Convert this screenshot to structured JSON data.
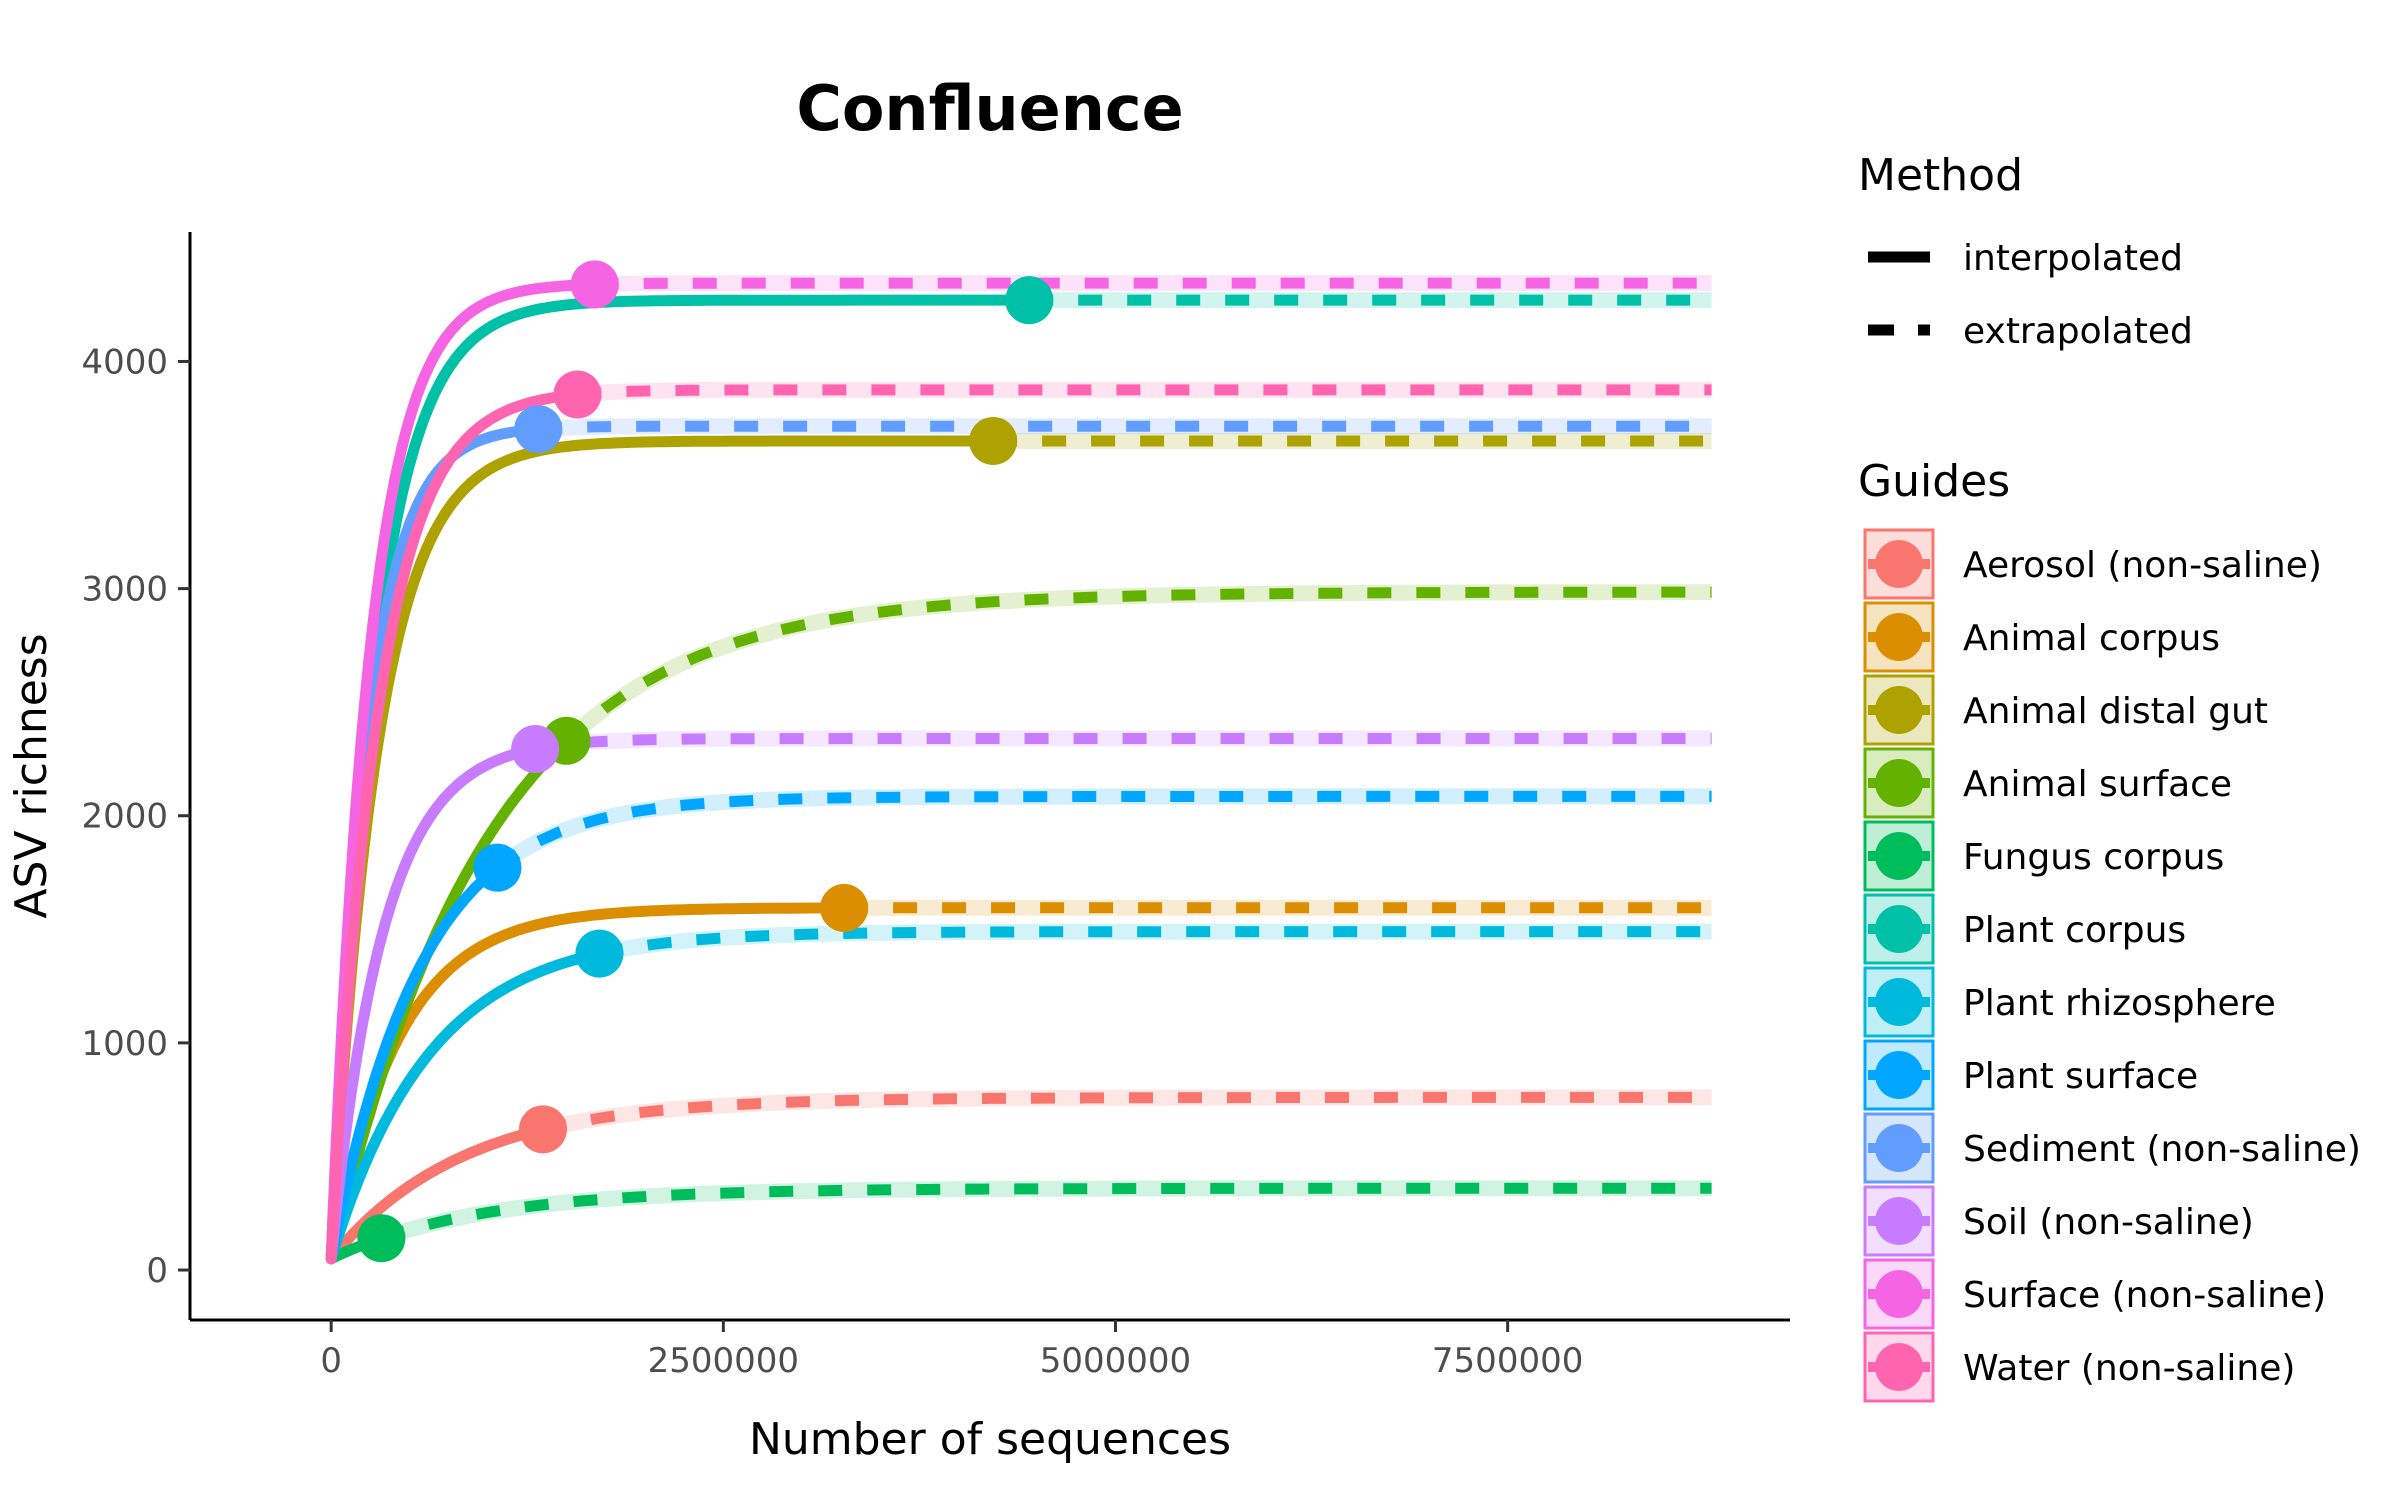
{
  "chart_data": {
    "type": "line",
    "title": "Confluence",
    "xlabel": "Number of sequences",
    "ylabel": "ASV richness",
    "xlim": [
      -900000,
      9300000
    ],
    "ylim": [
      -220,
      4570
    ],
    "x_ticks": [
      0,
      2500000,
      5000000,
      7500000
    ],
    "x_tick_labels": [
      "0",
      "2500000",
      "5000000",
      "7500000"
    ],
    "y_ticks": [
      0,
      1000,
      2000,
      3000,
      4000
    ],
    "y_tick_labels": [
      "0",
      "1000",
      "2000",
      "3000",
      "4000"
    ],
    "x_max": 8800000,
    "grid": false,
    "legend_placement": "right",
    "method_legend": {
      "title": "Method",
      "entries": [
        {
          "label": "interpolated",
          "style": "solid"
        },
        {
          "label": "extrapolated",
          "style": "dashed"
        }
      ]
    },
    "guides_legend_title": "Guides",
    "series": [
      {
        "name": "Aerosol (non-saline)",
        "color": "#F8766D",
        "observed_x": 1350000,
        "asymptote": 760,
        "rate": 2500000,
        "start_y": 50
      },
      {
        "name": "Animal corpus",
        "color": "#DB8E00",
        "observed_x": 3270000,
        "asymptote": 1595,
        "rate": 1300000,
        "start_y": 50
      },
      {
        "name": "Animal distal gut",
        "color": "#AEA200",
        "observed_x": 4220000,
        "asymptote": 3650,
        "rate": 900000,
        "start_y": 50
      },
      {
        "name": "Animal surface",
        "color": "#64B200",
        "observed_x": 1500000,
        "asymptote": 2985,
        "rate": 3000000,
        "start_y": 50
      },
      {
        "name": "Fungus corpus",
        "color": "#00BD5C",
        "observed_x": 320000,
        "asymptote": 360,
        "rate": 2800000,
        "start_y": 50
      },
      {
        "name": "Plant corpus",
        "color": "#00C1A7",
        "observed_x": 4450000,
        "asymptote": 4270,
        "rate": 850000,
        "start_y": 50
      },
      {
        "name": "Plant rhizosphere",
        "color": "#00BADE",
        "observed_x": 1710000,
        "asymptote": 1490,
        "rate": 1900000,
        "start_y": 50
      },
      {
        "name": "Plant surface",
        "color": "#00A6FF",
        "observed_x": 1060000,
        "asymptote": 2085,
        "rate": 1700000,
        "start_y": 50
      },
      {
        "name": "Sediment (non-saline)",
        "color": "#619CFF",
        "observed_x": 1320000,
        "asymptote": 3715,
        "rate": 700000,
        "start_y": 50
      },
      {
        "name": "Soil (non-saline)",
        "color": "#C77CFF",
        "observed_x": 1300000,
        "asymptote": 2340,
        "rate": 1000000,
        "start_y": 50
      },
      {
        "name": "Surface (non-saline)",
        "color": "#F564E3",
        "observed_x": 1680000,
        "asymptote": 4345,
        "rate": 760000,
        "start_y": 50
      },
      {
        "name": "Water (non-saline)",
        "color": "#FF64B0",
        "observed_x": 1570000,
        "asymptote": 3875,
        "rate": 900000,
        "start_y": 50
      }
    ]
  }
}
